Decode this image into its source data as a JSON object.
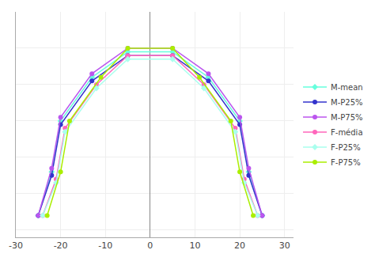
{
  "chart_data": {
    "type": "line",
    "series": [
      {
        "name": "M-mean",
        "color": "#66ffdd",
        "marker": "diamond",
        "x": [
          -25,
          -22,
          -20,
          -13,
          -5,
          5,
          13,
          20,
          22,
          25
        ],
        "values": [
          2,
          8,
          15,
          21,
          24.5,
          24.5,
          21,
          15,
          8,
          2
        ]
      },
      {
        "name": "M-P25%",
        "color": "#3333cc",
        "marker": "circle",
        "x": [
          -25,
          -22,
          -20,
          -13,
          -5,
          5,
          13,
          20,
          22,
          25
        ],
        "values": [
          2,
          7.5,
          14.5,
          20.5,
          24,
          24,
          20.5,
          14.5,
          7.5,
          2
        ]
      },
      {
        "name": "M-P75%",
        "color": "#bb55ee",
        "marker": "circle",
        "x": [
          -25,
          -22,
          -20,
          -13,
          -5,
          5,
          13,
          20,
          22,
          25
        ],
        "values": [
          2,
          8.5,
          15.5,
          21.5,
          25,
          25,
          21.5,
          15.5,
          8.5,
          2
        ]
      },
      {
        "name": "F-média",
        "color": "#ff66bb",
        "marker": "circle",
        "x": [
          -24,
          -21,
          -19,
          -12,
          -5,
          5,
          12,
          19,
          21,
          24
        ],
        "values": [
          2,
          7,
          14,
          20,
          24,
          24,
          20,
          14,
          7,
          2
        ]
      },
      {
        "name": "F-P25%",
        "color": "#aaffee",
        "marker": "diamond",
        "x": [
          -24,
          -21,
          -19,
          -12,
          -5,
          5,
          12,
          19,
          21,
          24
        ],
        "values": [
          2,
          6.5,
          13.5,
          19.5,
          23.5,
          23.5,
          19.5,
          13.5,
          6.5,
          2
        ]
      },
      {
        "name": "F-P75%",
        "color": "#aaee00",
        "marker": "circle",
        "x": [
          -23,
          -20,
          -18,
          -11,
          -5,
          5,
          11,
          18,
          20,
          23
        ],
        "values": [
          2,
          8,
          15,
          21,
          25,
          25,
          21,
          15,
          8,
          2
        ]
      }
    ],
    "xlim": [
      -30,
      32
    ],
    "xticks": [
      -30,
      -20,
      -10,
      0,
      10,
      20,
      30
    ],
    "ylim": [
      -1,
      30
    ],
    "yticks": [
      0,
      5,
      10,
      15,
      20,
      25,
      30
    ],
    "grid": true,
    "legend": "right",
    "tick_labels": "x"
  }
}
